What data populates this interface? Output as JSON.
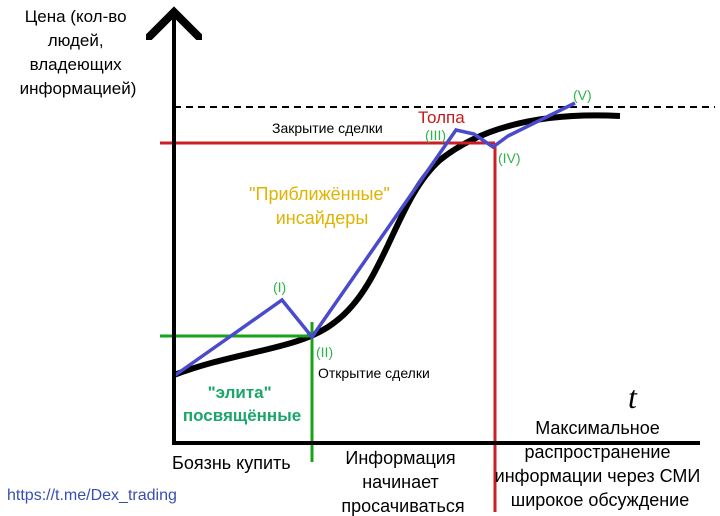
{
  "axes": {
    "y_label_lines": [
      "Цена (кол-во",
      "людей,",
      "владеющих",
      "информацией)"
    ],
    "x_label": "t"
  },
  "phases": {
    "I": "(I)",
    "II": "(II)",
    "III": "(III)",
    "IV": "(IV)",
    "V": "(V)"
  },
  "annotations": {
    "crowd": "Толпа",
    "close_trade": "Закрытие сделки",
    "open_trade": "Открытие сделки",
    "insiders_line1": "\"Приближённые\"",
    "insiders_line2": "инсайдеры",
    "elite_line1": "\"элита\"",
    "elite_line2": "посвящённые"
  },
  "bottom_labels": {
    "fear": "Боязнь купить",
    "leak_lines": [
      "Информация",
      "начинает",
      "просачиваться"
    ],
    "max_lines": [
      "Максимальное",
      "распространение",
      "информации через СМИ",
      "широкое обсуждение"
    ]
  },
  "watermark": "https://t.me/Dex_trading",
  "colors": {
    "axis": "#000000",
    "curve": "#000000",
    "price_path": "#4a4acd",
    "red": "#cc1f24",
    "green": "#1aa31a",
    "phase_label": "#2fb34a",
    "insiders_text": "#e0b300",
    "elite_text": "#1aa66a",
    "crowd_text": "#c61a1a",
    "watermark": "#3a4db0"
  }
}
